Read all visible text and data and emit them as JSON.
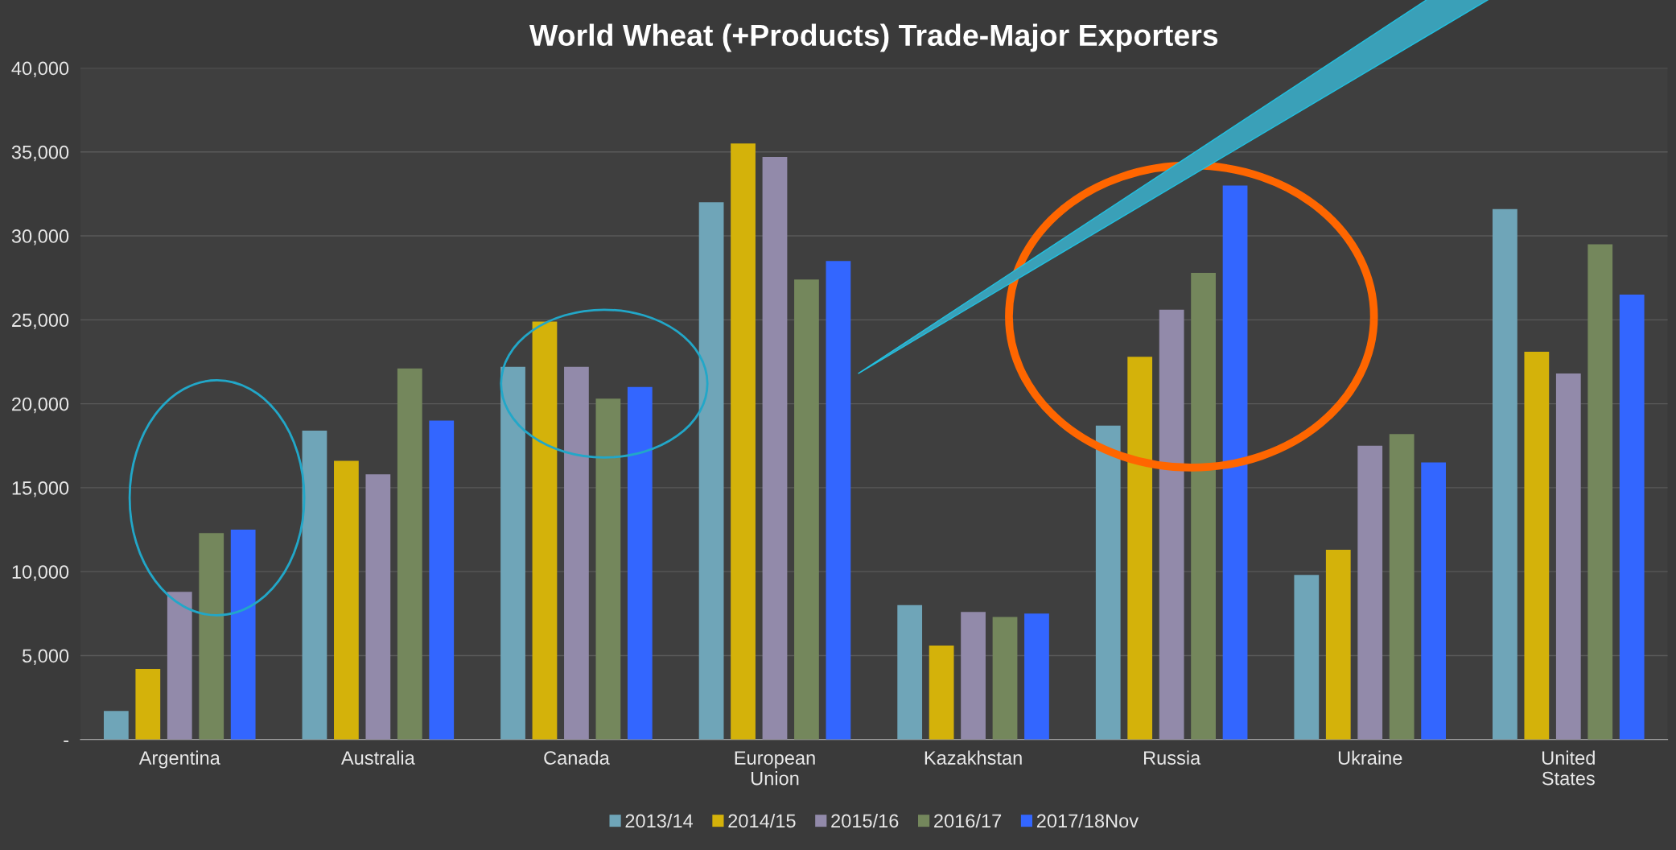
{
  "chart_data": {
    "type": "bar",
    "title": "World Wheat (+Products) Trade-Major Exporters",
    "categories": [
      "Argentina",
      "Australia",
      "Canada",
      "European\nUnion",
      "Kazakhstan",
      "Russia",
      "Ukraine",
      "United\nStates"
    ],
    "series": [
      {
        "name": "2013/14",
        "color": "#6fa5b8",
        "values": [
          1700,
          18400,
          22200,
          32000,
          8000,
          18700,
          9800,
          31600
        ]
      },
      {
        "name": "2014/15",
        "color": "#d4b20a",
        "values": [
          4200,
          16600,
          24900,
          35500,
          5600,
          22800,
          11300,
          23100
        ]
      },
      {
        "name": "2015/16",
        "color": "#928aaa",
        "values": [
          8800,
          15800,
          22200,
          34700,
          7600,
          25600,
          17500,
          21800
        ]
      },
      {
        "name": "2016/17",
        "color": "#74875c",
        "values": [
          12300,
          22100,
          20300,
          27400,
          7300,
          27800,
          18200,
          29500
        ]
      },
      {
        "name": "2017/18Nov",
        "color": "#3366ff",
        "values": [
          12500,
          19000,
          21000,
          28500,
          7500,
          33000,
          16500,
          26500
        ]
      }
    ],
    "ylim": [
      0,
      40000
    ],
    "yticks": [
      {
        "value": 0,
        "label": "-"
      },
      {
        "value": 5000,
        "label": "5,000"
      },
      {
        "value": 10000,
        "label": "10,000"
      },
      {
        "value": 15000,
        "label": "15,000"
      },
      {
        "value": 20000,
        "label": "20,000"
      },
      {
        "value": 25000,
        "label": "25,000"
      },
      {
        "value": 30000,
        "label": "30,000"
      },
      {
        "value": 35000,
        "label": "35,000"
      },
      {
        "value": 40000,
        "label": "40,000"
      }
    ],
    "grid": "y",
    "legend": "bottom"
  }
}
